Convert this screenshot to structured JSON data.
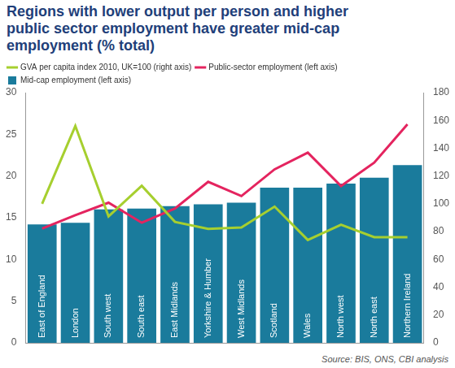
{
  "chart_data": {
    "type": "bar",
    "title": "Regions with lower output per person and higher public sector employment have greater mid-cap employment (% total)",
    "source": "Source: BIS, ONS, CBI analysis",
    "categories": [
      "East of England",
      "London",
      "South west",
      "South east",
      "East Midlands",
      "Yorkshire & Humber",
      "West Midlands",
      "Scotland",
      "Wales",
      "North west",
      "North east",
      "Northern Ireland"
    ],
    "series": [
      {
        "name": "Mid-cap employment (left axis)",
        "type": "bar",
        "color": "#1a7b9c",
        "values": [
          14.2,
          14.4,
          16.0,
          16.1,
          16.4,
          16.6,
          16.8,
          18.6,
          18.6,
          19.1,
          19.8,
          21.3
        ]
      },
      {
        "name": "GVA per capita index 2010, UK=100 (right axis)",
        "type": "line",
        "color": "#a6cf2f",
        "axis": "y2",
        "values": [
          100,
          156,
          91,
          113,
          87,
          82,
          83,
          98,
          74,
          85,
          76,
          76
        ]
      },
      {
        "name": "Public-sector employment (left axis)",
        "type": "line",
        "color": "#e4245f",
        "values": [
          13.7,
          15.3,
          16.8,
          14.4,
          16.1,
          19.3,
          17.6,
          20.8,
          22.8,
          18.8,
          21.6,
          26.2
        ]
      }
    ],
    "ylim": [
      0,
      30
    ],
    "yticks": [
      0,
      5,
      10,
      15,
      20,
      25,
      30
    ],
    "y2lim": [
      0,
      180
    ],
    "y2ticks": [
      0,
      20,
      40,
      60,
      80,
      100,
      120,
      140,
      160,
      180
    ],
    "grid": false,
    "legend": "top"
  }
}
